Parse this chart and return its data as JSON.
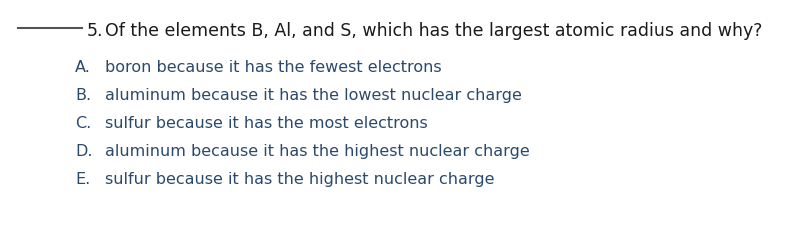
{
  "background_color": "#ffffff",
  "question_number": "5.",
  "question_text": "Of the elements B, Al, and S, which has the largest atomic radius and why?",
  "question_color": "#1a1a1a",
  "underline_color": "#555555",
  "options": [
    {
      "label": "A.",
      "text": "boron because it has the fewest electrons",
      "color": "#2b4a6b"
    },
    {
      "label": "B.",
      "text": "aluminum because it has the lowest nuclear charge",
      "color": "#2b4a6b"
    },
    {
      "label": "C.",
      "text": "sulfur because it has the most electrons",
      "color": "#2b4a6b"
    },
    {
      "label": "D.",
      "text": "aluminum because it has the highest nuclear charge",
      "color": "#2b4a6b"
    },
    {
      "label": "E.",
      "text": "sulfur because it has the highest nuclear charge",
      "color": "#2b4a6b"
    }
  ],
  "question_fontsize": 12.5,
  "option_fontsize": 11.5,
  "figsize": [
    8.05,
    2.37
  ],
  "dpi": 100
}
